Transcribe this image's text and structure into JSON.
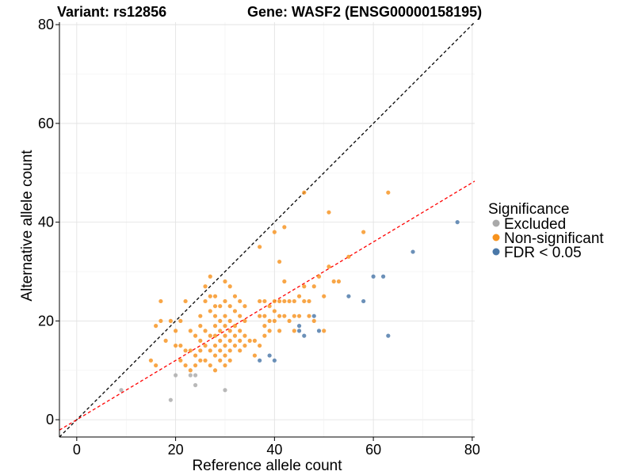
{
  "chart_data": {
    "type": "scatter",
    "title_left": "Variant: rs12856",
    "title_right": "Gene: WASF2 (ENSG00000158195)",
    "xlabel": "Reference allele count",
    "ylabel": "Alternative allele count",
    "xlim": [
      -3.5,
      80.5
    ],
    "ylim": [
      -3.5,
      80.5
    ],
    "xticks": [
      0,
      20,
      40,
      60,
      80
    ],
    "yticks": [
      0,
      20,
      40,
      60,
      80
    ],
    "grid": true,
    "legend_position": "right",
    "legend_title": "Significance",
    "reference_lines": [
      {
        "slope": 1.0,
        "intercept": 0,
        "color": "#000000",
        "style": "dashed"
      },
      {
        "slope": 0.6,
        "intercept": 0,
        "color": "#ff0000",
        "style": "dashed"
      }
    ],
    "series": [
      {
        "name": "Excluded",
        "color": "#a9a9a9",
        "points": [
          [
            9,
            6
          ],
          [
            19,
            4
          ],
          [
            20,
            9
          ],
          [
            23,
            9
          ],
          [
            24,
            9
          ],
          [
            24,
            7
          ],
          [
            30,
            6
          ]
        ]
      },
      {
        "name": "Non-significant",
        "color": "#f7931e",
        "points": [
          [
            15,
            12
          ],
          [
            16,
            11
          ],
          [
            16,
            19
          ],
          [
            17,
            24
          ],
          [
            17,
            20
          ],
          [
            18,
            16
          ],
          [
            19,
            20
          ],
          [
            20,
            15
          ],
          [
            20,
            18
          ],
          [
            21,
            12
          ],
          [
            21,
            15
          ],
          [
            21,
            20
          ],
          [
            22,
            24
          ],
          [
            22,
            14
          ],
          [
            22,
            11
          ],
          [
            23,
            18
          ],
          [
            23,
            14
          ],
          [
            23,
            10
          ],
          [
            24,
            17
          ],
          [
            24,
            13
          ],
          [
            24,
            11
          ],
          [
            25,
            21
          ],
          [
            25,
            19
          ],
          [
            25,
            16
          ],
          [
            25,
            14
          ],
          [
            25,
            12
          ],
          [
            26,
            27
          ],
          [
            26,
            24
          ],
          [
            26,
            18
          ],
          [
            26,
            15
          ],
          [
            26,
            12
          ],
          [
            27,
            29
          ],
          [
            27,
            25
          ],
          [
            27,
            22
          ],
          [
            27,
            17
          ],
          [
            27,
            14
          ],
          [
            27,
            11
          ],
          [
            28,
            25
          ],
          [
            28,
            23
          ],
          [
            28,
            21
          ],
          [
            28,
            19
          ],
          [
            28,
            17
          ],
          [
            28,
            15
          ],
          [
            28,
            13
          ],
          [
            28,
            10
          ],
          [
            29,
            23
          ],
          [
            29,
            20
          ],
          [
            29,
            18
          ],
          [
            29,
            16
          ],
          [
            29,
            14
          ],
          [
            29,
            12
          ],
          [
            30,
            28
          ],
          [
            30,
            24
          ],
          [
            30,
            21
          ],
          [
            30,
            19
          ],
          [
            30,
            17
          ],
          [
            30,
            15
          ],
          [
            30,
            13
          ],
          [
            30,
            11
          ],
          [
            31,
            27
          ],
          [
            31,
            23
          ],
          [
            31,
            20
          ],
          [
            31,
            18
          ],
          [
            31,
            16
          ],
          [
            31,
            14
          ],
          [
            31,
            12
          ],
          [
            32,
            25
          ],
          [
            32,
            22
          ],
          [
            32,
            19
          ],
          [
            32,
            17
          ],
          [
            32,
            15
          ],
          [
            33,
            24
          ],
          [
            33,
            21
          ],
          [
            33,
            18
          ],
          [
            33,
            16
          ],
          [
            33,
            14
          ],
          [
            34,
            23
          ],
          [
            34,
            20
          ],
          [
            34,
            17
          ],
          [
            34,
            15
          ],
          [
            35,
            16
          ],
          [
            36,
            16
          ],
          [
            36,
            13
          ],
          [
            37,
            35
          ],
          [
            37,
            24
          ],
          [
            37,
            21
          ],
          [
            37,
            15
          ],
          [
            38,
            24
          ],
          [
            38,
            21
          ],
          [
            38,
            19
          ],
          [
            38,
            17
          ],
          [
            39,
            23
          ],
          [
            39,
            20
          ],
          [
            39,
            18
          ],
          [
            40,
            38
          ],
          [
            40,
            24
          ],
          [
            40,
            22
          ],
          [
            40,
            20
          ],
          [
            41,
            32
          ],
          [
            41,
            24
          ],
          [
            41,
            21
          ],
          [
            41,
            18
          ],
          [
            42,
            39
          ],
          [
            42,
            28
          ],
          [
            42,
            24
          ],
          [
            42,
            21
          ],
          [
            43,
            24
          ],
          [
            43,
            20
          ],
          [
            44,
            24
          ],
          [
            44,
            21
          ],
          [
            44,
            18
          ],
          [
            45,
            25
          ],
          [
            45,
            21
          ],
          [
            46,
            46
          ],
          [
            46,
            27
          ],
          [
            46,
            24
          ],
          [
            47,
            24
          ],
          [
            47,
            21
          ],
          [
            48,
            27
          ],
          [
            48,
            20
          ],
          [
            49,
            29
          ],
          [
            50,
            25
          ],
          [
            50,
            18
          ],
          [
            51,
            42
          ],
          [
            51,
            31
          ],
          [
            52,
            28
          ],
          [
            53,
            28
          ],
          [
            55,
            33
          ],
          [
            58,
            38
          ],
          [
            63,
            46
          ]
        ]
      },
      {
        "name": "FDR < 0.05",
        "color": "#4a78a8",
        "points": [
          [
            37,
            12
          ],
          [
            39,
            13
          ],
          [
            40,
            12
          ],
          [
            45,
            19
          ],
          [
            45,
            18
          ],
          [
            46,
            17
          ],
          [
            48,
            21
          ],
          [
            49,
            18
          ],
          [
            55,
            25
          ],
          [
            58,
            24
          ],
          [
            60,
            29
          ],
          [
            62,
            29
          ],
          [
            63,
            17
          ],
          [
            68,
            34
          ],
          [
            77,
            40
          ]
        ]
      }
    ]
  }
}
